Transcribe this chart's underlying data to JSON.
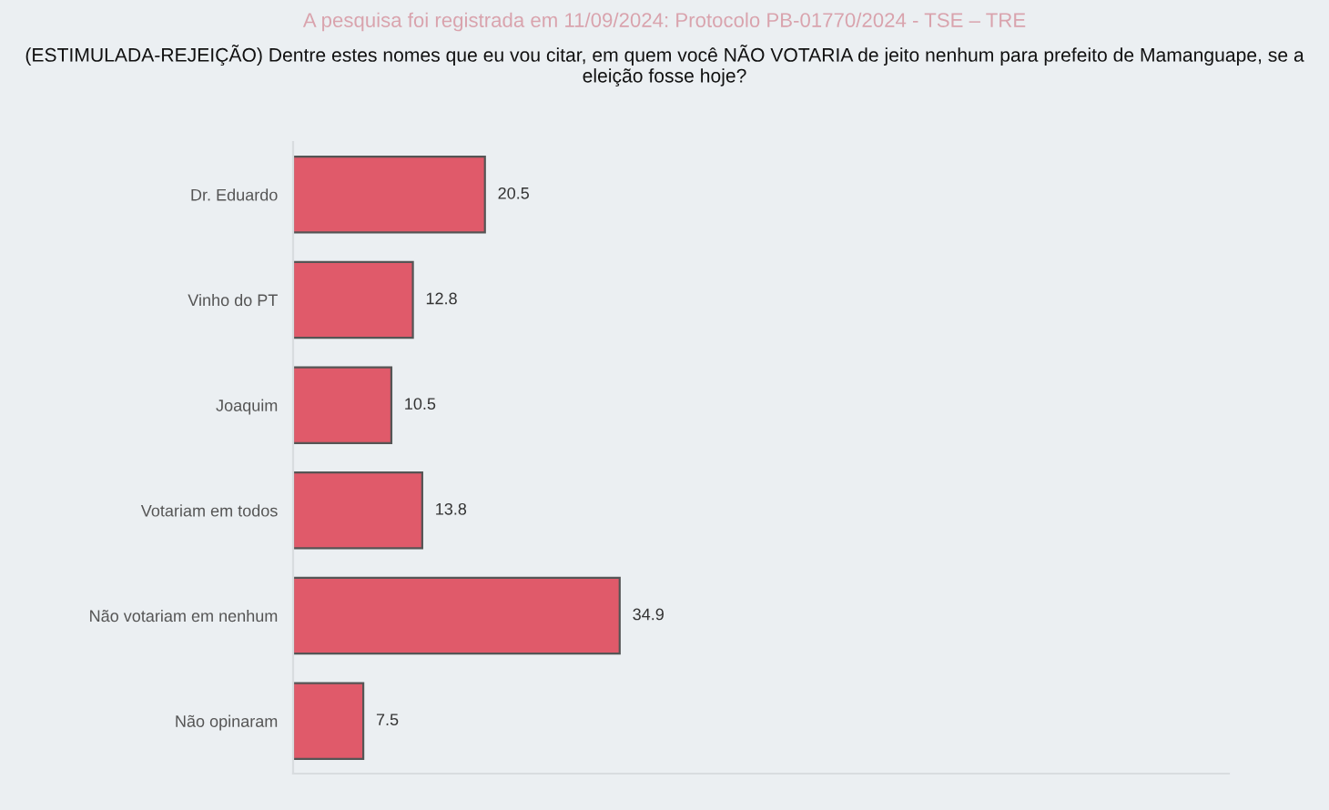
{
  "chart_data": {
    "type": "bar",
    "orientation": "horizontal",
    "title": "(ESTIMULADA-REJEIÇÃO) Dentre estes nomes que eu vou citar, em quem você NÃO VOTARIA de jeito nenhum para prefeito de Mamanguape, se a eleição fosse hoje?",
    "subtitle": "A pesquisa foi registrada em 11/09/2024: Protocolo PB-01770/2024 - TSE – TRE",
    "categories": [
      "Dr. Eduardo",
      "Vinho do PT",
      "Joaquim",
      "Votariam em todos",
      "Não votariam em nenhum",
      "Não opinaram"
    ],
    "values": [
      20.5,
      12.8,
      10.5,
      13.8,
      34.9,
      7.5
    ],
    "color": "#e05a6a",
    "xlim": [
      0,
      100
    ],
    "data_labels": true,
    "grid": false,
    "legend": false
  }
}
